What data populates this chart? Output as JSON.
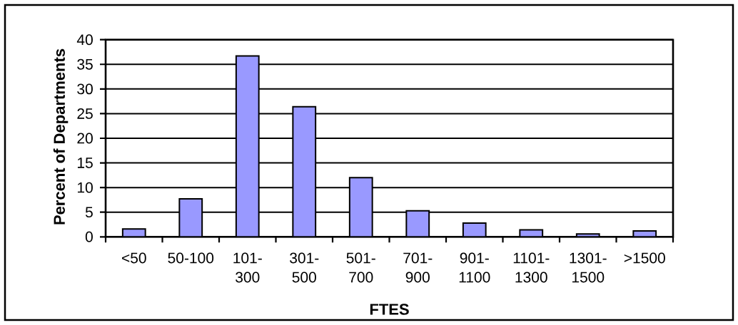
{
  "chart_data": {
    "type": "bar",
    "xlabel": "FTES",
    "ylabel": "Percent of Departments",
    "categories": [
      "<50",
      "50-100",
      "101-300",
      "301-500",
      "501-700",
      "701-900",
      "901-1100",
      "1101-1300",
      "1301-1500",
      ">1500"
    ],
    "values": [
      1.6,
      7.7,
      36.7,
      26.4,
      12.0,
      5.3,
      2.8,
      1.4,
      0.6,
      1.2
    ],
    "color": "#9999ff",
    "ylim": [
      0,
      40
    ],
    "yticks": [
      0,
      5,
      10,
      15,
      20,
      25,
      30,
      35,
      40
    ],
    "grid": "y"
  }
}
